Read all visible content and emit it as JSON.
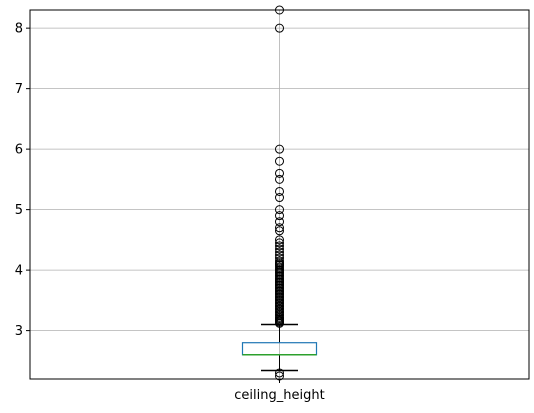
{
  "chart_data": {
    "type": "box",
    "categories": [
      "ceiling_height"
    ],
    "title": "",
    "xlabel": "",
    "ylabel": "",
    "ylim": [
      2.2,
      8.3
    ],
    "yticks": [
      "3",
      "4",
      "5",
      "6",
      "7",
      "8"
    ],
    "grid": true,
    "box": {
      "whisker_low": 2.34,
      "q1": 2.6,
      "median": 2.6,
      "q3": 2.8,
      "whisker_high": 3.1
    },
    "outliers_high": [
      3.12,
      3.14,
      3.16,
      3.18,
      3.2,
      3.22,
      3.25,
      3.27,
      3.3,
      3.32,
      3.35,
      3.37,
      3.4,
      3.42,
      3.45,
      3.47,
      3.5,
      3.52,
      3.55,
      3.57,
      3.6,
      3.62,
      3.65,
      3.67,
      3.7,
      3.72,
      3.75,
      3.77,
      3.8,
      3.82,
      3.85,
      3.87,
      3.9,
      3.92,
      3.95,
      3.97,
      4.0,
      4.02,
      4.05,
      4.08,
      4.1,
      4.12,
      4.15,
      4.2,
      4.25,
      4.3,
      4.35,
      4.4,
      4.45,
      4.5,
      4.65,
      4.7,
      4.8,
      4.9,
      5.0,
      5.2,
      5.3,
      5.5,
      5.6,
      5.8,
      6.0,
      8.0,
      8.3
    ],
    "outliers_low": [
      2.25,
      2.3
    ],
    "colors": {
      "box": "#1f77b4",
      "median": "#2ca02c",
      "whisker": "#000000",
      "grid": "#b0b0b0"
    }
  }
}
